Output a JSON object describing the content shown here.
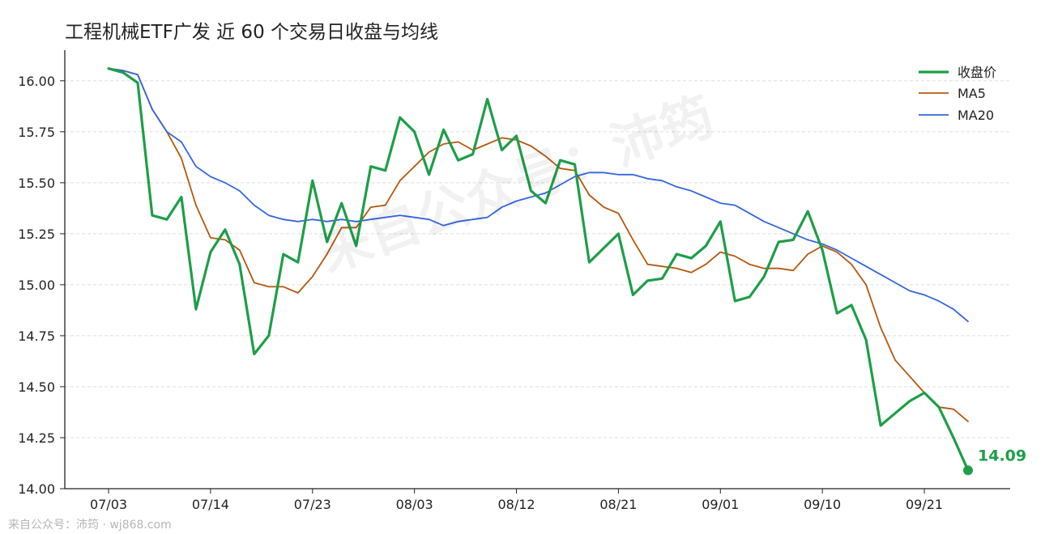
{
  "title": "工程机械ETF广发 近 60 个交易日收盘与均线",
  "footer": "来自公众号：沛筠 · wj868.com",
  "watermark": "来自公众号：沛筠",
  "last_price_label": "14.09",
  "colors": {
    "close": "#1e9e48",
    "ma5": "#b5570f",
    "ma20": "#3366dd",
    "grid": "#dddddd",
    "axis": "#222222"
  },
  "chart_data": {
    "type": "line",
    "title": "工程机械ETF广发 近 60 个交易日收盘与均线",
    "xlabel": "",
    "ylabel": "",
    "ylim": [
      14.0,
      16.15
    ],
    "yticks": [
      14.0,
      14.25,
      14.5,
      14.75,
      15.0,
      15.25,
      15.5,
      15.75,
      16.0
    ],
    "ytick_labels": [
      "14.00",
      "14.25",
      "14.50",
      "14.75",
      "15.00",
      "15.25",
      "15.50",
      "15.75",
      "16.00"
    ],
    "xticks": [
      {
        "index": 0,
        "label": "07/03"
      },
      {
        "index": 7,
        "label": "07/14"
      },
      {
        "index": 14,
        "label": "07/23"
      },
      {
        "index": 21,
        "label": "08/03"
      },
      {
        "index": 28,
        "label": "08/12"
      },
      {
        "index": 35,
        "label": "08/21"
      },
      {
        "index": 42,
        "label": "09/01"
      },
      {
        "index": 49,
        "label": "09/10"
      },
      {
        "index": 56,
        "label": "09/21"
      }
    ],
    "grid": true,
    "legend_position": "top-right",
    "series": [
      {
        "name": "收盘价",
        "values": [
          16.06,
          16.04,
          15.99,
          15.34,
          15.32,
          15.43,
          14.88,
          15.16,
          15.27,
          15.1,
          14.66,
          14.75,
          15.15,
          15.11,
          15.51,
          15.21,
          15.4,
          15.19,
          15.58,
          15.56,
          15.82,
          15.75,
          15.54,
          15.76,
          15.61,
          15.64,
          15.91,
          15.66,
          15.73,
          15.46,
          15.4,
          15.61,
          15.59,
          15.11,
          15.18,
          15.25,
          14.95,
          15.02,
          15.03,
          15.15,
          15.13,
          15.19,
          15.31,
          14.92,
          14.94,
          15.04,
          15.21,
          15.22,
          15.36,
          15.17,
          14.86,
          14.9,
          14.73,
          14.31,
          14.37,
          14.43,
          14.47,
          14.4,
          14.25,
          14.09
        ]
      },
      {
        "name": "MA5",
        "values": [
          16.06,
          16.05,
          16.03,
          15.86,
          15.75,
          15.62,
          15.39,
          15.23,
          15.22,
          15.17,
          15.01,
          14.99,
          14.99,
          14.96,
          15.04,
          15.15,
          15.28,
          15.28,
          15.38,
          15.39,
          15.51,
          15.58,
          15.65,
          15.69,
          15.7,
          15.66,
          15.69,
          15.72,
          15.71,
          15.68,
          15.63,
          15.57,
          15.56,
          15.44,
          15.38,
          15.35,
          15.22,
          15.1,
          15.09,
          15.08,
          15.06,
          15.1,
          15.16,
          15.14,
          15.1,
          15.08,
          15.08,
          15.07,
          15.15,
          15.19,
          15.16,
          15.1,
          15.0,
          14.79,
          14.63,
          14.55,
          14.47,
          14.4,
          14.39,
          14.33
        ]
      },
      {
        "name": "MA20",
        "values": [
          16.06,
          16.05,
          16.03,
          15.86,
          15.75,
          15.7,
          15.58,
          15.53,
          15.5,
          15.46,
          15.39,
          15.34,
          15.32,
          15.31,
          15.32,
          15.31,
          15.32,
          15.31,
          15.32,
          15.33,
          15.34,
          15.33,
          15.32,
          15.29,
          15.31,
          15.32,
          15.33,
          15.38,
          15.41,
          15.43,
          15.45,
          15.49,
          15.53,
          15.55,
          15.55,
          15.54,
          15.54,
          15.52,
          15.51,
          15.48,
          15.46,
          15.43,
          15.4,
          15.39,
          15.35,
          15.31,
          15.28,
          15.25,
          15.22,
          15.2,
          15.17,
          15.13,
          15.09,
          15.05,
          15.01,
          14.97,
          14.95,
          14.92,
          14.88,
          14.82
        ]
      }
    ]
  }
}
